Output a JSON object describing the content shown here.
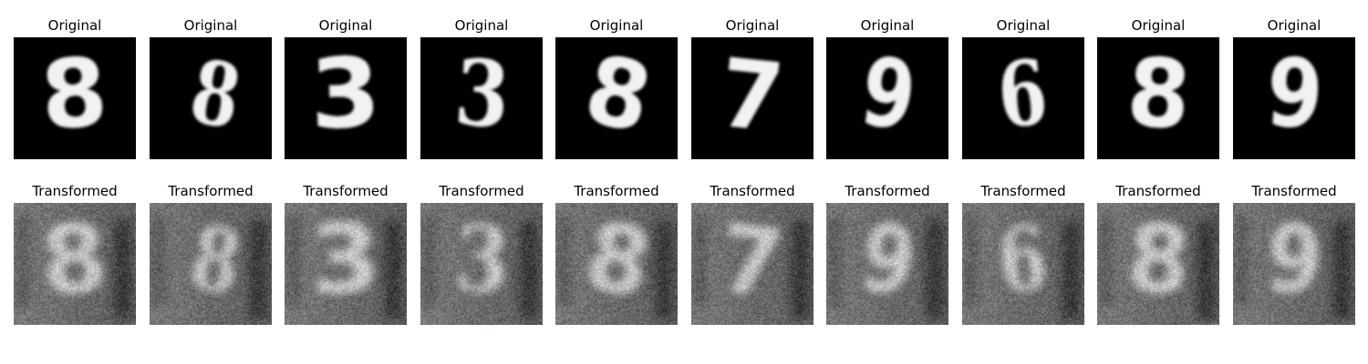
{
  "figure": {
    "rows": [
      {
        "id": "original",
        "title": "Original",
        "style": "original",
        "digits": [
          "8",
          "8",
          "3",
          "3",
          "8",
          "7",
          "9",
          "6",
          "8",
          "9"
        ]
      },
      {
        "id": "transformed",
        "title": "Transformed",
        "style": "transformed",
        "digits": [
          "8",
          "8",
          "3",
          "3",
          "8",
          "7",
          "9",
          "6",
          "8",
          "9"
        ]
      }
    ],
    "colors": {
      "background": "#ffffff",
      "original_bg": "#000000",
      "original_fg": "#f2f2f2",
      "transformed_bg": "#6e6e6e",
      "transformed_fg": "#c9c9c9",
      "title_text": "#000000"
    }
  }
}
